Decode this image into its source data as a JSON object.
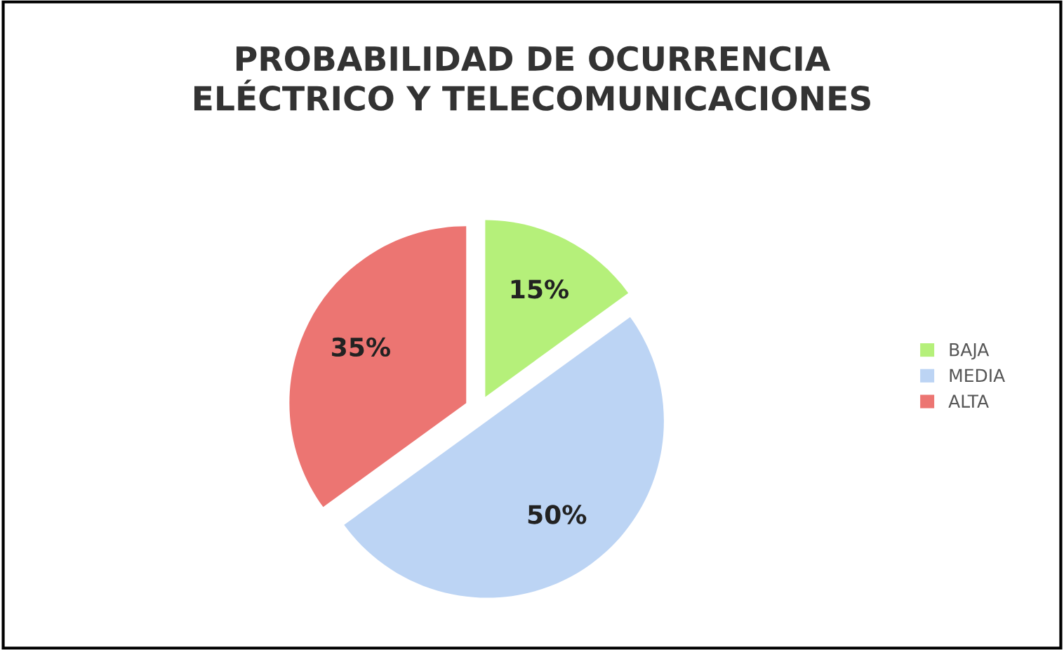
{
  "chart_data": {
    "type": "pie",
    "title": "PROBABILIDAD DE OCURRENCIA\nELÉCTRICO Y TELECOMUNICACIONES",
    "categories": [
      "BAJA",
      "MEDIA",
      "ALTA"
    ],
    "values": [
      15,
      50,
      35
    ],
    "colors": [
      "#b5f07a",
      "#bcd4f4",
      "#ec7572"
    ],
    "value_labels": [
      "15%",
      "50%",
      "35%"
    ],
    "legend": "right"
  }
}
